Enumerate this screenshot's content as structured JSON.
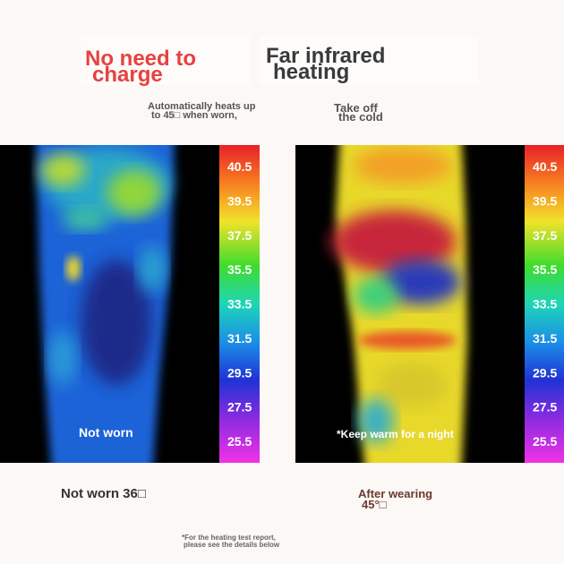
{
  "headline": {
    "left": [
      "No need to",
      "charge"
    ],
    "right": [
      "Far infrared",
      "heating"
    ]
  },
  "subhead": {
    "left": [
      "Automatically heats up",
      "to 45□ when worn,"
    ],
    "right": [
      "Take off",
      "the cold"
    ]
  },
  "panels": [
    {
      "overlay": "Not worn",
      "caption": [
        "Not worn 36□"
      ],
      "scale": [
        "40.5",
        "39.5",
        "37.5",
        "35.5",
        "33.5",
        "31.5",
        "29.5",
        "27.5",
        "25.5"
      ]
    },
    {
      "overlay": "*Keep warm for a night",
      "caption": [
        "After wearing",
        "45°□"
      ],
      "scale": [
        "40.5",
        "39.5",
        "37.5",
        "35.5",
        "33.5",
        "31.5",
        "29.5",
        "27.5",
        "25.5"
      ]
    }
  ],
  "footnote": [
    "*For the heating test report,",
    "please see the details below"
  ]
}
